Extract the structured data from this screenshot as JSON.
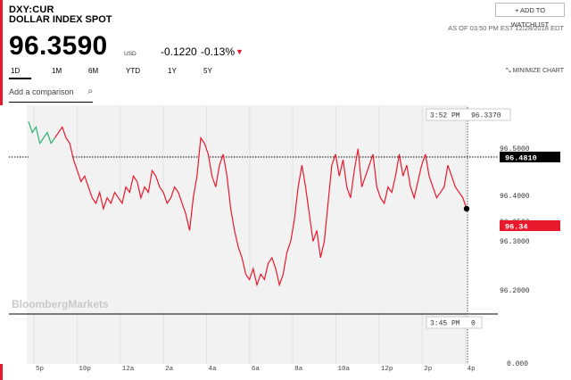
{
  "header": {
    "ticker": "DXY:CUR",
    "name": "DOLLAR INDEX SPOT",
    "watchlist_label": "+ ADD TO WATCHLIST",
    "as_of": "AS OF 03:50 PM EST 12/28/2018 EDT"
  },
  "quote": {
    "price": "96.3590",
    "currency": "USD",
    "change": "-0.1220",
    "change_pct": "-0.13%",
    "direction": "down"
  },
  "range_tabs": [
    "1D",
    "1M",
    "6M",
    "YTD",
    "1Y",
    "5Y"
  ],
  "selected_tab": "1D",
  "minimize_label": "MINIMIZE CHART",
  "compare_placeholder": "Add a comparison",
  "watermark": "BloombergMarkets",
  "colors": {
    "price_line": "#e8192c",
    "accent": "#e8192c",
    "up_line": "#2bb673"
  },
  "chart_data": {
    "type": "line",
    "x_tick_labels": [
      "5p",
      "10p",
      "12a",
      "2a",
      "4a",
      "6a",
      "8a",
      "10a",
      "12p",
      "2p",
      "4p"
    ],
    "y_tick_labels": [
      "96.5000",
      "96.4000",
      "96.3500",
      "96.3000",
      "96.2000"
    ],
    "volume_axis_label": "0.000",
    "ylim": [
      96.15,
      96.53
    ],
    "crosshair_time": "3:52 PM",
    "crosshair_value": "96.3370",
    "prev_close_label": "96.4810",
    "last_label": "96.34",
    "volume_time": "3:45 PM",
    "volume_value": "0",
    "series": [
      {
        "values": [
          96.5,
          96.48,
          96.49,
          96.46,
          96.47,
          96.48,
          96.46,
          96.47,
          96.48,
          96.49,
          96.47,
          96.46,
          96.43,
          96.41,
          96.39,
          96.4,
          96.38,
          96.36,
          96.35,
          96.37,
          96.34,
          96.36,
          96.35,
          96.37,
          96.36,
          96.35,
          96.38,
          96.37,
          96.4,
          96.39,
          96.36,
          96.38,
          96.37,
          96.41,
          96.4,
          96.38,
          96.37,
          96.35,
          96.36,
          96.38,
          96.37,
          96.35,
          96.33,
          96.3,
          96.36,
          96.4,
          96.47,
          96.46,
          96.44,
          96.4,
          96.38,
          96.42,
          96.44,
          96.4,
          96.34,
          96.3,
          96.27,
          96.25,
          96.22,
          96.21,
          96.23,
          96.2,
          96.22,
          96.21,
          96.24,
          96.25,
          96.23,
          96.2,
          96.22,
          96.26,
          96.28,
          96.32,
          96.38,
          96.42,
          96.38,
          96.33,
          96.28,
          96.3,
          96.25,
          96.28,
          96.35,
          96.42,
          96.44,
          96.4,
          96.43,
          96.38,
          96.36,
          96.41,
          96.45,
          96.38,
          96.4,
          96.42,
          96.44,
          96.38,
          96.36,
          96.35,
          96.38,
          96.37,
          96.4,
          96.44,
          96.4,
          96.42,
          96.38,
          96.36,
          96.39,
          96.42,
          96.44,
          96.4,
          96.38,
          96.36,
          96.37,
          96.38,
          96.42,
          96.4,
          96.38,
          96.37,
          96.36,
          96.34
        ]
      }
    ]
  }
}
